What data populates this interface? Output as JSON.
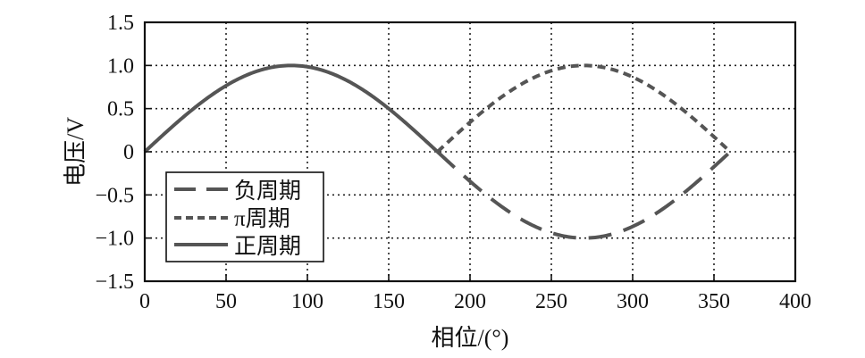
{
  "chart_data": {
    "type": "line",
    "title": "",
    "xlabel": "相位/(°)",
    "ylabel": "电压/V",
    "xlim": [
      0,
      400
    ],
    "ylim": [
      -1.5,
      1.5
    ],
    "xticks": [
      0,
      50,
      100,
      150,
      200,
      250,
      300,
      350,
      400
    ],
    "yticks": [
      1.5,
      1.0,
      0.5,
      0,
      -0.5,
      -1.0,
      -1.5
    ],
    "xtick_labels": [
      "0",
      "50",
      "100",
      "150",
      "200",
      "250",
      "300",
      "350",
      "400"
    ],
    "ytick_labels": [
      "1.5",
      "1.0",
      "0.5",
      "0",
      "−0.5",
      "−1.0",
      "−1.5"
    ],
    "grid": true,
    "grid_style": "dotted",
    "legend_position": "lower left",
    "series": [
      {
        "name": "负周期",
        "style": "long-dash",
        "color": "#555555",
        "function": "sin(x°) for x in [180, 360]",
        "x": [
          180,
          200,
          225,
          250,
          270,
          290,
          315,
          340,
          360
        ],
        "y": [
          0,
          -0.342,
          -0.707,
          -0.94,
          -1.0,
          -0.94,
          -0.707,
          -0.342,
          0
        ]
      },
      {
        "name": "π周期",
        "style": "short-dash",
        "color": "#555555",
        "function": "-sin(x°) for x in [180, 360]",
        "x": [
          180,
          200,
          225,
          250,
          270,
          290,
          315,
          340,
          360
        ],
        "y": [
          0,
          0.342,
          0.707,
          0.94,
          1.0,
          0.94,
          0.707,
          0.342,
          0
        ]
      },
      {
        "name": "正周期",
        "style": "solid",
        "color": "#555555",
        "function": "sin(x°) for x in [0, 180]",
        "x": [
          0,
          20,
          45,
          70,
          90,
          110,
          135,
          160,
          180
        ],
        "y": [
          0,
          0.342,
          0.707,
          0.94,
          1.0,
          0.94,
          0.707,
          0.342,
          0
        ]
      }
    ]
  },
  "legend": {
    "items": [
      {
        "label": "负周期"
      },
      {
        "label": "π周期"
      },
      {
        "label": "正周期"
      }
    ]
  }
}
